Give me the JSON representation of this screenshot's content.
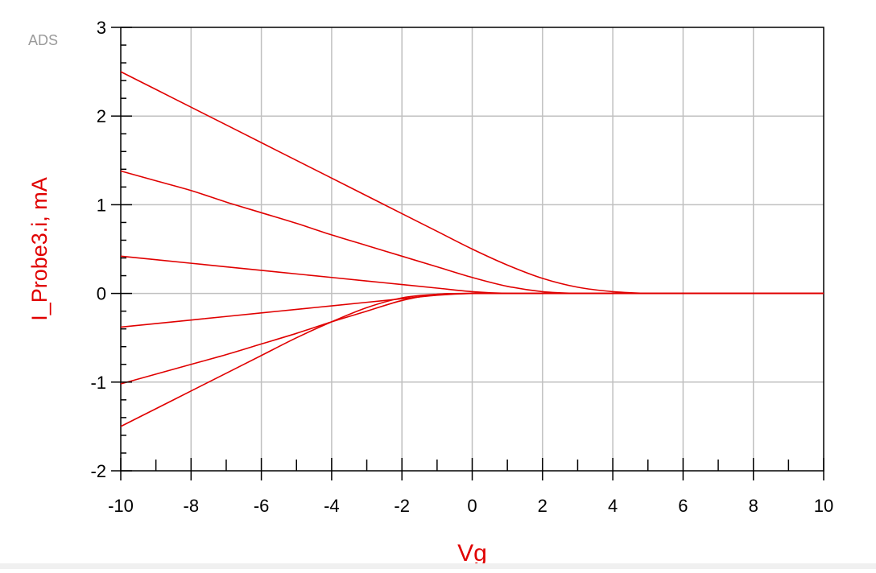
{
  "watermark": "ADS",
  "colors": {
    "curve": "#e00000",
    "axis_label": "#e00000",
    "grid": "#c0c0c0",
    "frame": "#000000",
    "tick_text": "#000000"
  },
  "chart_data": {
    "type": "line",
    "xlabel": "Vg",
    "ylabel": "I_Probe3.i, mA",
    "xlim": [
      -10,
      10
    ],
    "ylim": [
      -2,
      3
    ],
    "x_ticks": [
      -10,
      -8,
      -6,
      -4,
      -2,
      0,
      2,
      4,
      6,
      8,
      10
    ],
    "y_ticks": [
      -2,
      -1,
      0,
      1,
      2,
      3
    ],
    "grid": true,
    "legend": "none",
    "x": [
      -10,
      -9,
      -8,
      -7,
      -6,
      -5,
      -4,
      -3,
      -2,
      -1,
      0,
      1,
      2,
      3,
      4,
      5,
      6,
      7,
      8,
      9,
      10
    ],
    "series": [
      {
        "values": [
          2.5,
          2.3,
          2.1,
          1.9,
          1.7,
          1.5,
          1.3,
          1.1,
          0.9,
          0.7,
          0.5,
          0.32,
          0.17,
          0.07,
          0.02,
          0.0,
          0.0,
          0.0,
          0.0,
          0.0,
          0.0
        ]
      },
      {
        "values": [
          1.38,
          1.27,
          1.16,
          1.03,
          0.91,
          0.79,
          0.66,
          0.54,
          0.42,
          0.3,
          0.18,
          0.08,
          0.02,
          0.0,
          0.0,
          0.0,
          0.0,
          0.0,
          0.0,
          0.0,
          0.0
        ]
      },
      {
        "values": [
          0.42,
          0.38,
          0.34,
          0.3,
          0.26,
          0.22,
          0.18,
          0.14,
          0.1,
          0.06,
          0.02,
          0.0,
          0.0,
          0.0,
          0.0,
          0.0,
          0.0,
          0.0,
          0.0,
          0.0,
          0.0
        ]
      },
      {
        "values": [
          -0.38,
          -0.34,
          -0.3,
          -0.26,
          -0.22,
          -0.18,
          -0.14,
          -0.1,
          -0.06,
          -0.02,
          0.0,
          0.0,
          0.0,
          0.0,
          0.0,
          0.0,
          0.0,
          0.0,
          0.0,
          0.0,
          0.0
        ]
      },
      {
        "values": [
          -1.02,
          -0.91,
          -0.8,
          -0.69,
          -0.57,
          -0.45,
          -0.32,
          -0.2,
          -0.08,
          -0.01,
          0.0,
          0.0,
          0.0,
          0.0,
          0.0,
          0.0,
          0.0,
          0.0,
          0.0,
          0.0,
          0.0
        ]
      },
      {
        "values": [
          -1.5,
          -1.3,
          -1.1,
          -0.9,
          -0.7,
          -0.5,
          -0.32,
          -0.16,
          -0.05,
          -0.01,
          0.0,
          0.0,
          0.0,
          0.0,
          0.0,
          0.0,
          0.0,
          0.0,
          0.0,
          0.0,
          0.0
        ]
      }
    ]
  }
}
